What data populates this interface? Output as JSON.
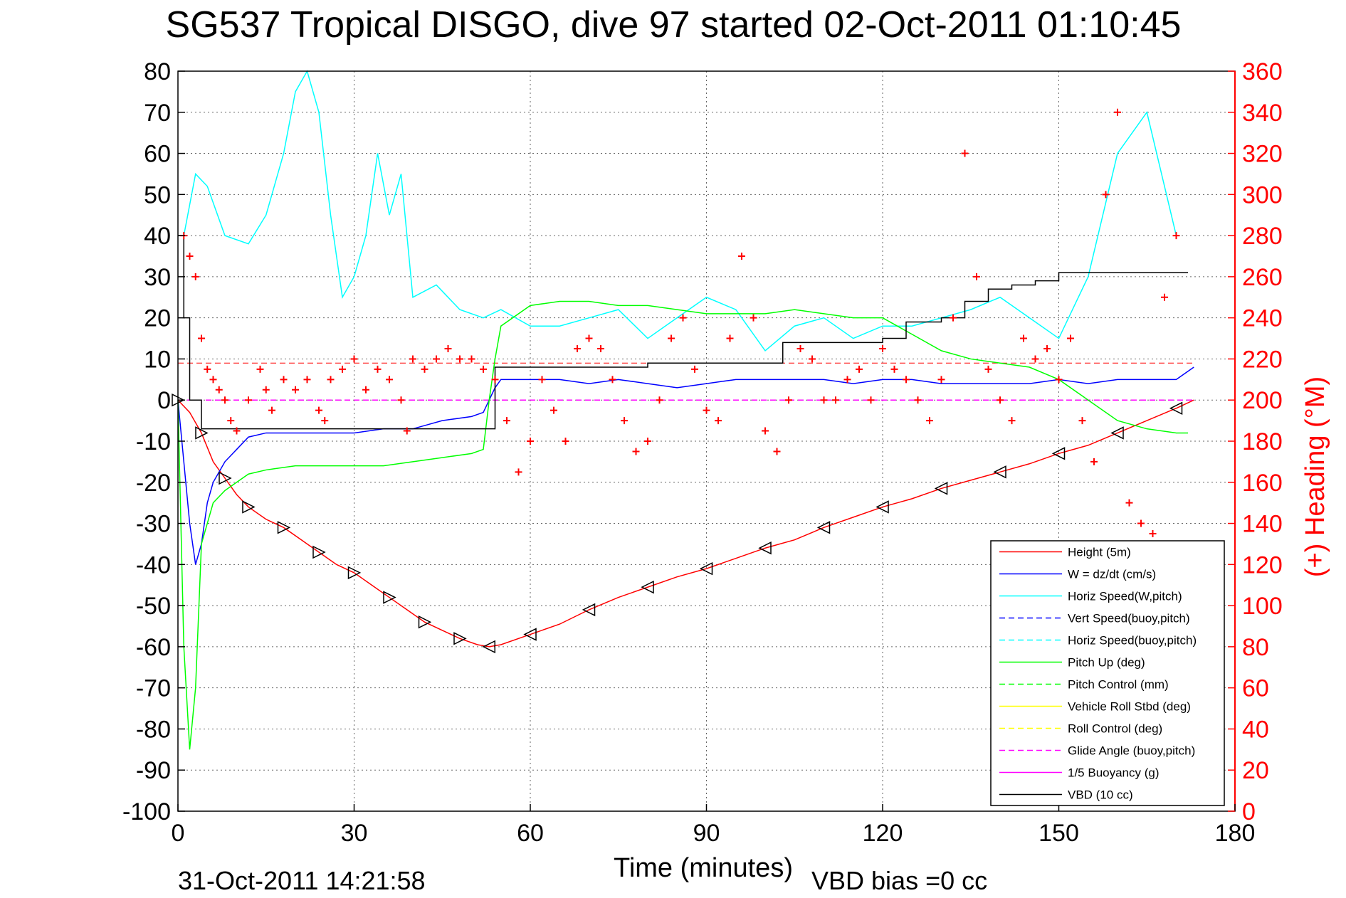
{
  "title": "SG537 Tropical DISGO, dive 97 started 02-Oct-2011 01:10:45",
  "footer": {
    "timestamp": "31-Oct-2011 14:21:58",
    "vbd_bias": "VBD bias =0 cc"
  },
  "colors": {
    "height": "#ff0000",
    "w": "#0000ff",
    "horiz_w": "#00ffff",
    "pitch_up": "#00ff00",
    "roll": "#ffff00",
    "glide": "#ff00ff",
    "vbd": "#000000",
    "heading": "#ff0000",
    "grid": "#000000"
  },
  "chart_data": {
    "type": "line",
    "title": "SG537 Tropical DISGO, dive 97 started 02-Oct-2011 01:10:45",
    "xlabel": "Time (minutes)",
    "ylabel_right": "(+) Heading (°M)",
    "xlim": [
      0,
      180
    ],
    "ylim_left": [
      -100,
      80
    ],
    "ylim_right": [
      0,
      360
    ],
    "x_ticks": [
      0,
      30,
      60,
      90,
      120,
      150,
      180
    ],
    "y_left_ticks": [
      80,
      70,
      60,
      50,
      40,
      30,
      20,
      10,
      0,
      -10,
      -20,
      -30,
      -40,
      -50,
      -60,
      -70,
      -80,
      -90,
      -100
    ],
    "y_right_ticks": [
      360,
      340,
      320,
      300,
      280,
      260,
      240,
      220,
      200,
      180,
      160,
      140,
      120,
      100,
      80,
      60,
      40,
      20,
      0
    ],
    "grid": true,
    "legend_position": "bottom-right",
    "legend": [
      {
        "label": "Height (5m)",
        "color": "#ff0000",
        "style": "solid"
      },
      {
        "label": "W = dz/dt (cm/s)",
        "color": "#0000ff",
        "style": "solid"
      },
      {
        "label": "Horiz Speed(W,pitch)",
        "color": "#00ffff",
        "style": "solid"
      },
      {
        "label": "Vert Speed(buoy,pitch)",
        "color": "#0000ff",
        "style": "dashed"
      },
      {
        "label": "Horiz Speed(buoy,pitch)",
        "color": "#00ffff",
        "style": "dashed"
      },
      {
        "label": "Pitch Up (deg)",
        "color": "#00ff00",
        "style": "solid"
      },
      {
        "label": "Pitch Control (mm)",
        "color": "#00ff00",
        "style": "dashed"
      },
      {
        "label": "Vehicle Roll Stbd (deg)",
        "color": "#ffff00",
        "style": "solid"
      },
      {
        "label": "Roll Control (deg)",
        "color": "#ffff00",
        "style": "dashed"
      },
      {
        "label": "Glide Angle (buoy,pitch)",
        "color": "#ff00ff",
        "style": "dashed"
      },
      {
        "label": "1/5 Buoyancy (g)",
        "color": "#ff00ff",
        "style": "solid"
      },
      {
        "label": "VBD (10 cc)",
        "color": "#000000",
        "style": "solid"
      }
    ],
    "series": [
      {
        "name": "Height (5m)",
        "axis": "left",
        "color": "#ff0000",
        "x": [
          0,
          2,
          4,
          6,
          8,
          10,
          12,
          15,
          18,
          21,
          24,
          27,
          30,
          33,
          36,
          39,
          42,
          45,
          48,
          51,
          53,
          55,
          60,
          65,
          70,
          75,
          80,
          85,
          90,
          95,
          100,
          105,
          110,
          115,
          120,
          125,
          130,
          135,
          140,
          145,
          150,
          155,
          160,
          165,
          170,
          173
        ],
        "y": [
          0,
          -3,
          -8,
          -15,
          -19,
          -23,
          -26,
          -29,
          -31,
          -34,
          -37,
          -40,
          -42,
          -45,
          -48,
          -51,
          -54,
          -56,
          -58,
          -59.5,
          -60,
          -59.5,
          -57,
          -54.5,
          -51,
          -48,
          -45.5,
          -43,
          -41,
          -38.5,
          -36,
          -34,
          -31,
          -28.5,
          -26,
          -24,
          -21.5,
          -19.5,
          -17.5,
          -15.5,
          -13,
          -11,
          -8,
          -5,
          -2,
          0
        ]
      },
      {
        "name": "W = dz/dt (cm/s)",
        "axis": "left",
        "color": "#0000ff",
        "x": [
          0,
          1,
          2,
          3,
          4,
          5,
          6,
          8,
          10,
          12,
          15,
          20,
          25,
          30,
          35,
          40,
          45,
          50,
          52,
          53,
          54,
          55,
          60,
          65,
          70,
          75,
          80,
          85,
          90,
          95,
          100,
          105,
          110,
          115,
          120,
          125,
          130,
          135,
          140,
          145,
          150,
          155,
          160,
          165,
          170,
          173
        ],
        "y": [
          0,
          -15,
          -30,
          -40,
          -35,
          -25,
          -20,
          -15,
          -12,
          -9,
          -8,
          -8,
          -8,
          -8,
          -7,
          -7,
          -5,
          -4,
          -3,
          0,
          3,
          5,
          5,
          5,
          4,
          5,
          4,
          3,
          4,
          5,
          5,
          5,
          5,
          4,
          5,
          5,
          4,
          4,
          4,
          4,
          5,
          4,
          5,
          5,
          5,
          8
        ]
      },
      {
        "name": "Horiz Speed(W,pitch)",
        "axis": "left",
        "color": "#00ffff",
        "x": [
          1,
          3,
          5,
          8,
          12,
          15,
          18,
          20,
          22,
          24,
          26,
          28,
          30,
          32,
          34,
          36,
          38,
          40,
          44,
          48,
          52,
          55,
          60,
          65,
          70,
          75,
          80,
          85,
          90,
          95,
          100,
          105,
          110,
          115,
          120,
          125,
          130,
          135,
          140,
          145,
          150,
          155,
          160,
          165,
          170
        ],
        "y": [
          40,
          55,
          52,
          40,
          38,
          45,
          60,
          75,
          80,
          70,
          45,
          25,
          30,
          40,
          60,
          45,
          55,
          25,
          28,
          22,
          20,
          22,
          18,
          18,
          20,
          22,
          15,
          20,
          25,
          22,
          12,
          18,
          20,
          15,
          18,
          18,
          20,
          22,
          25,
          20,
          15,
          30,
          60,
          70,
          40
        ]
      },
      {
        "name": "Pitch Up (deg)",
        "axis": "left",
        "color": "#00ff00",
        "x": [
          0,
          1,
          2,
          3,
          4,
          5,
          6,
          8,
          10,
          12,
          15,
          20,
          25,
          30,
          35,
          40,
          45,
          50,
          52,
          53,
          54,
          55,
          60,
          65,
          70,
          75,
          80,
          85,
          90,
          95,
          100,
          105,
          110,
          115,
          120,
          125,
          130,
          135,
          140,
          145,
          150,
          155,
          160,
          165,
          170,
          172
        ],
        "y": [
          0,
          -60,
          -85,
          -70,
          -35,
          -30,
          -25,
          -22,
          -20,
          -18,
          -17,
          -16,
          -16,
          -16,
          -16,
          -15,
          -14,
          -13,
          -12,
          0,
          10,
          18,
          23,
          24,
          24,
          23,
          23,
          22,
          21,
          21,
          21,
          22,
          21,
          20,
          20,
          16,
          12,
          10,
          9,
          8,
          5,
          0,
          -5,
          -7,
          -8,
          -8
        ]
      },
      {
        "name": "VBD (10 cc)",
        "axis": "left",
        "color": "#000000",
        "step": true,
        "x": [
          0,
          1,
          2,
          4,
          12,
          20,
          30,
          40,
          50,
          53,
          54,
          60,
          80,
          90,
          100,
          103,
          110,
          120,
          124,
          130,
          134,
          138,
          142,
          146,
          150,
          160,
          170,
          172
        ],
        "y": [
          40,
          20,
          0,
          -7,
          -7,
          -7,
          -7,
          -7,
          -7,
          -7,
          8,
          8,
          9,
          9,
          9,
          14,
          14,
          15,
          19,
          20,
          24,
          27,
          28,
          29,
          31,
          31,
          31,
          31
        ]
      },
      {
        "name": "Heading",
        "axis": "right",
        "color": "#ff0000",
        "markers": "+",
        "x": [
          1,
          2,
          3,
          4,
          5,
          6,
          7,
          8,
          9,
          10,
          12,
          14,
          15,
          16,
          18,
          20,
          22,
          24,
          25,
          26,
          28,
          30,
          32,
          34,
          36,
          38,
          39,
          40,
          42,
          44,
          46,
          48,
          50,
          52,
          54,
          56,
          58,
          60,
          62,
          64,
          66,
          68,
          70,
          72,
          74,
          76,
          78,
          80,
          82,
          84,
          86,
          88,
          90,
          92,
          94,
          96,
          98,
          100,
          102,
          104,
          106,
          108,
          110,
          112,
          114,
          116,
          118,
          120,
          122,
          124,
          126,
          128,
          130,
          132,
          134,
          136,
          138,
          140,
          142,
          144,
          146,
          148,
          150,
          152,
          154,
          156,
          158,
          160,
          162,
          164,
          166,
          168,
          170
        ],
        "y": [
          280,
          270,
          260,
          230,
          215,
          210,
          205,
          200,
          190,
          185,
          200,
          215,
          205,
          195,
          210,
          205,
          210,
          195,
          190,
          210,
          215,
          220,
          205,
          215,
          210,
          200,
          185,
          220,
          215,
          220,
          225,
          220,
          220,
          215,
          210,
          190,
          165,
          180,
          210,
          195,
          180,
          225,
          230,
          225,
          210,
          190,
          175,
          180,
          200,
          230,
          240,
          215,
          195,
          190,
          230,
          270,
          240,
          185,
          175,
          200,
          225,
          220,
          200,
          200,
          210,
          215,
          200,
          225,
          215,
          210,
          200,
          190,
          210,
          240,
          320,
          260,
          215,
          200,
          190,
          230,
          220,
          225,
          210,
          230,
          190,
          170,
          300,
          340,
          150,
          140,
          135,
          250,
          280
        ]
      }
    ]
  }
}
